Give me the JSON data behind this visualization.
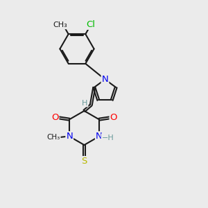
{
  "bg_color": "#ebebeb",
  "bond_color": "#1a1a1a",
  "bond_width": 1.5,
  "atom_colors": {
    "N": "#0000ee",
    "O": "#ff0000",
    "S": "#b8b800",
    "Cl": "#00bb00",
    "H_gray": "#6a9a9a",
    "C": "#1a1a1a"
  },
  "font_size_atom": 9.5,
  "font_size_small": 8.0,
  "fig_width": 3.0,
  "fig_height": 3.0,
  "xlim": [
    0,
    10
  ],
  "ylim": [
    0,
    10
  ]
}
